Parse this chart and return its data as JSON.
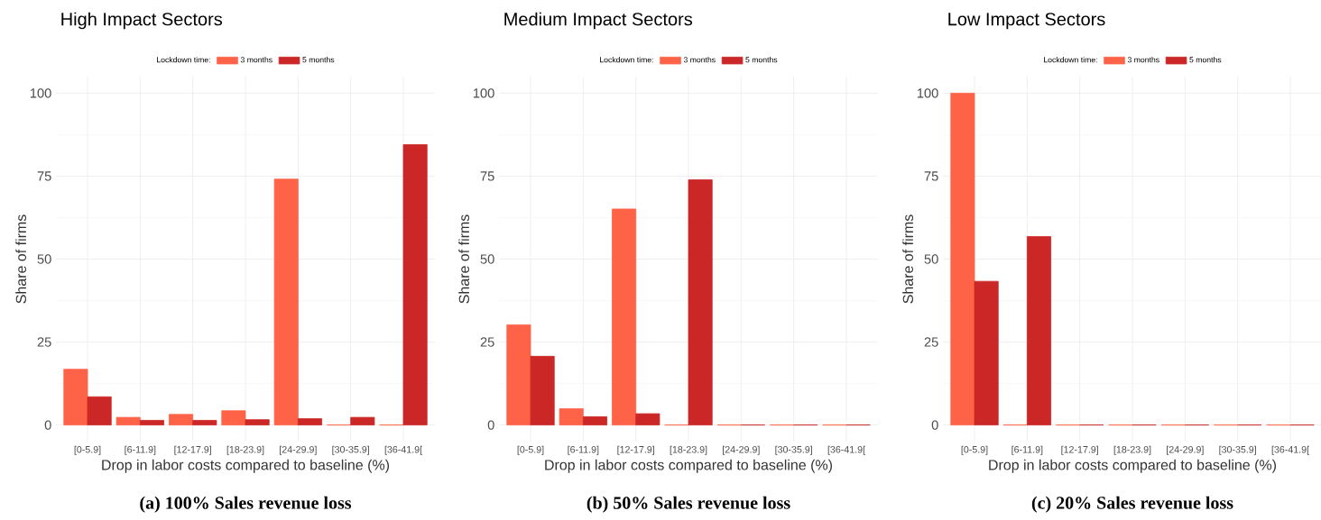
{
  "chart_data": [
    {
      "type": "bar",
      "title": "High Impact Sectors",
      "xlabel": "Drop in labor costs compared to baseline (%)",
      "ylabel": "Share of firms",
      "legend_title": "Lockdown time:",
      "legend": "top",
      "grid": true,
      "categories": [
        "[0-5.9]",
        "[6-11.9]",
        "[12-17.9]",
        "[18-23.9]",
        "[24-29.9]",
        "[30-35.9]",
        "[36-41.9["
      ],
      "series": [
        {
          "name": "3 months",
          "color": "#ff6347",
          "values": [
            16.8,
            2.3,
            3.2,
            4.3,
            74.1,
            0,
            0
          ]
        },
        {
          "name": "5 months",
          "color": "#cb2727",
          "values": [
            8.5,
            1.4,
            1.4,
            1.6,
            1.9,
            2.3,
            84.5
          ]
        }
      ],
      "ylim": [
        -5,
        105
      ],
      "yticks": [
        0,
        25,
        50,
        75,
        100
      ],
      "annotations": [
        "(a) 100% Sales revenue loss"
      ]
    },
    {
      "type": "bar",
      "title": "Medium Impact Sectors",
      "xlabel": "Drop in labor costs compared to baseline (%)",
      "ylabel": "Share of firms",
      "legend_title": "Lockdown time:",
      "legend": "top",
      "grid": true,
      "categories": [
        "[0-5.9]",
        "[6-11.9]",
        "[12-17.9]",
        "[18-23.9]",
        "[24-29.9]",
        "[30-35.9]",
        "[36-41.9["
      ],
      "series": [
        {
          "name": "3 months",
          "color": "#ff6347",
          "values": [
            30.2,
            4.9,
            65.1,
            0,
            0,
            0,
            0
          ]
        },
        {
          "name": "5 months",
          "color": "#cb2727",
          "values": [
            20.7,
            2.5,
            3.4,
            73.9,
            0,
            0,
            0
          ]
        }
      ],
      "ylim": [
        -5,
        105
      ],
      "yticks": [
        0,
        25,
        50,
        75,
        100
      ],
      "annotations": [
        "(b) 50% Sales revenue loss"
      ]
    },
    {
      "type": "bar",
      "title": "Low Impact Sectors",
      "xlabel": "Drop in labor costs compared to baseline (%)",
      "ylabel": "Share of firms",
      "legend_title": "Lockdown time:",
      "legend": "top",
      "grid": true,
      "categories": [
        "[0-5.9]",
        "[6-11.9]",
        "[12-17.9]",
        "[18-23.9]",
        "[24-29.9]",
        "[30-35.9]",
        "[36-41.9["
      ],
      "series": [
        {
          "name": "3 months",
          "color": "#ff6347",
          "values": [
            100,
            0,
            0,
            0,
            0,
            0,
            0
          ]
        },
        {
          "name": "5 months",
          "color": "#cb2727",
          "values": [
            43.3,
            56.8,
            0,
            0,
            0,
            0,
            0
          ]
        }
      ],
      "ylim": [
        -5,
        105
      ],
      "yticks": [
        0,
        25,
        50,
        75,
        100
      ],
      "annotations": [
        "(c) 20% Sales revenue loss"
      ]
    }
  ]
}
